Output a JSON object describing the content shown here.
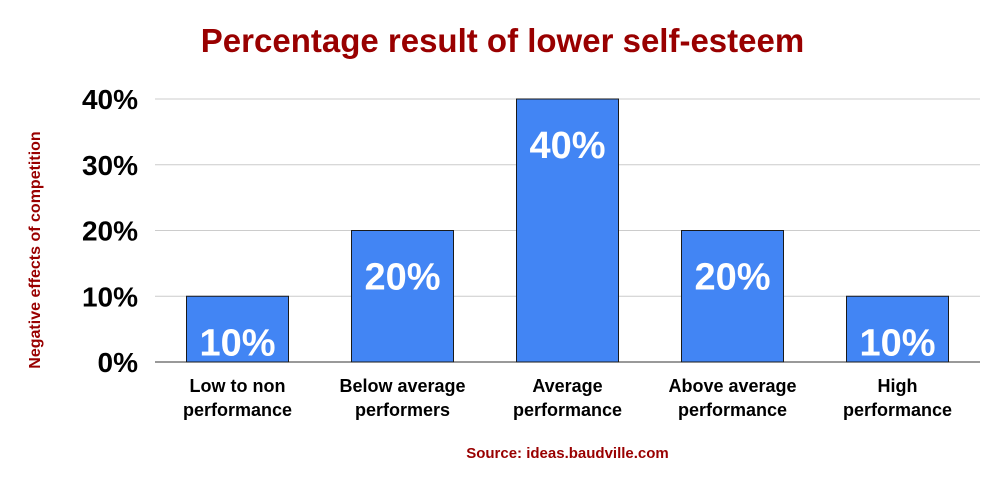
{
  "chart_data": {
    "type": "bar",
    "title": "Percentage result of lower self-esteem",
    "ylabel": "Negative effects of competition",
    "xlabel": "",
    "categories": [
      [
        "Low to non",
        "performance"
      ],
      [
        "Below average",
        "performers"
      ],
      [
        "Average",
        "performance"
      ],
      [
        "Above average",
        "performance"
      ],
      [
        "High",
        "performance"
      ]
    ],
    "values": [
      10,
      20,
      40,
      20,
      10
    ],
    "data_labels": [
      "10%",
      "20%",
      "40%",
      "20%",
      "10%"
    ],
    "ylim": [
      0,
      40
    ],
    "yticks": [
      0,
      10,
      20,
      30,
      40
    ],
    "ytick_labels": [
      "0%",
      "10%",
      "20%",
      "30%",
      "40%"
    ],
    "grid": true,
    "legend": "none",
    "bar_color": "#4285f4",
    "title_color": "#990000",
    "source": "Source: ideas.baudville.com"
  }
}
